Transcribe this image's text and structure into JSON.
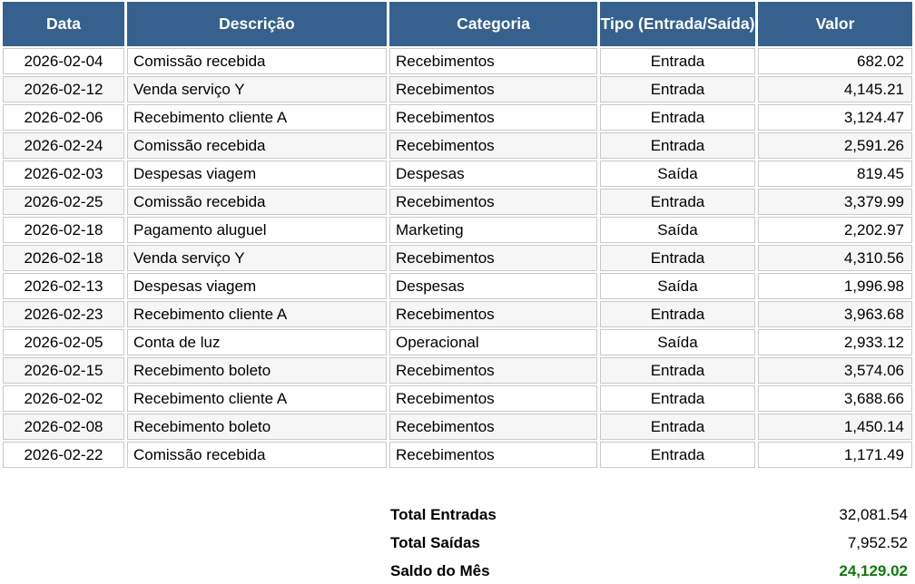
{
  "table": {
    "columns": [
      "Data",
      "Descrição",
      "Categoria",
      "Tipo (Entrada/Saída)",
      "Valor"
    ],
    "rows": [
      [
        "2026-02-04",
        "Comissão recebida",
        "Recebimentos",
        "Entrada",
        "682.02"
      ],
      [
        "2026-02-12",
        "Venda serviço Y",
        "Recebimentos",
        "Entrada",
        "4,145.21"
      ],
      [
        "2026-02-06",
        "Recebimento cliente A",
        "Recebimentos",
        "Entrada",
        "3,124.47"
      ],
      [
        "2026-02-24",
        "Comissão recebida",
        "Recebimentos",
        "Entrada",
        "2,591.26"
      ],
      [
        "2026-02-03",
        "Despesas viagem",
        "Despesas",
        "Saída",
        "819.45"
      ],
      [
        "2026-02-25",
        "Comissão recebida",
        "Recebimentos",
        "Entrada",
        "3,379.99"
      ],
      [
        "2026-02-18",
        "Pagamento aluguel",
        "Marketing",
        "Saída",
        "2,202.97"
      ],
      [
        "2026-02-18",
        "Venda serviço Y",
        "Recebimentos",
        "Entrada",
        "4,310.56"
      ],
      [
        "2026-02-13",
        "Despesas viagem",
        "Despesas",
        "Saída",
        "1,996.98"
      ],
      [
        "2026-02-23",
        "Recebimento cliente A",
        "Recebimentos",
        "Entrada",
        "3,963.68"
      ],
      [
        "2026-02-05",
        "Conta de luz",
        "Operacional",
        "Saída",
        "2,933.12"
      ],
      [
        "2026-02-15",
        "Recebimento boleto",
        "Recebimentos",
        "Entrada",
        "3,574.06"
      ],
      [
        "2026-02-02",
        "Recebimento cliente A",
        "Recebimentos",
        "Entrada",
        "3,688.66"
      ],
      [
        "2026-02-08",
        "Recebimento boleto",
        "Recebimentos",
        "Entrada",
        "1,450.14"
      ],
      [
        "2026-02-22",
        "Comissão recebida",
        "Recebimentos",
        "Entrada",
        "1,171.49"
      ]
    ]
  },
  "summary": {
    "rows": [
      {
        "label": "Total Entradas",
        "value": "32,081.54"
      },
      {
        "label": "Total Saídas",
        "value": "7,952.52"
      },
      {
        "label": "Saldo do Mês",
        "value": "24,129.02"
      }
    ]
  },
  "colors": {
    "header_bg": "#36618f",
    "header_text": "#ffffff",
    "row_alt_bg": "#f6f6f6",
    "cell_border": "#c9c9c9",
    "saldo_green": "#0c7c0c"
  }
}
